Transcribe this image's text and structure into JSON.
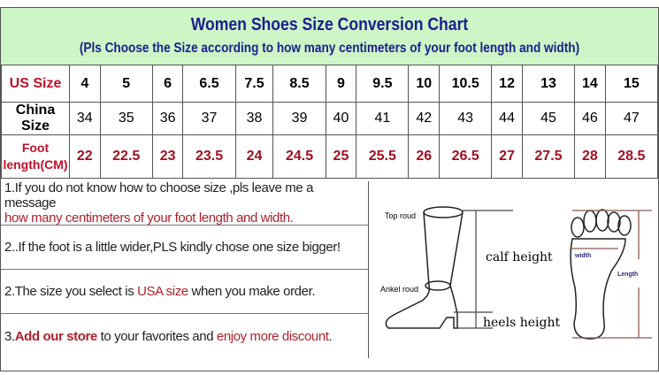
{
  "header": {
    "title": "Women Shoes Size Conversion Chart",
    "subtitle": "(Pls Choose the Size according to how many centimeters of your foot length and width)"
  },
  "table": {
    "us_label": "US Size",
    "us": [
      "4",
      "5",
      "6",
      "6.5",
      "7.5",
      "8.5",
      "9",
      "9.5",
      "10",
      "10.5",
      "12",
      "13",
      "14",
      "15"
    ],
    "china_label": "China Size",
    "china": [
      "34",
      "35",
      "36",
      "37",
      "38",
      "39",
      "40",
      "41",
      "42",
      "43",
      "44",
      "45",
      "46",
      "47"
    ],
    "foot_label_1": "Foot",
    "foot_label_2": "length(CM)",
    "foot": [
      "22",
      "22.5",
      "23",
      "23.5",
      "24",
      "24.5",
      "25",
      "25.5",
      "26",
      "26.5",
      "27",
      "27.5",
      "28",
      "28.5"
    ]
  },
  "notes": {
    "n1a": "1.If you do not know how to choose size ,pls leave me a message",
    "n1b": "how many centimeters of your foot length and width.",
    "n2": "2..If the foot is a little wider,PLS kindly chose one size bigger!",
    "n3a": "2.The size you select is ",
    "n3b": "USA size",
    "n3c": " when you make order.",
    "n4a": "3.",
    "n4b": "Add our store",
    "n4c": " to your favorites and ",
    "n4d": "enjoy more discount",
    "n4e": "."
  },
  "diagram": {
    "top_round": "Top roud",
    "ankle_round": "Ankel roud",
    "calf_height": "calf height",
    "heels_height": "heels height",
    "width": "width",
    "length": "Length"
  },
  "colors": {
    "header_bg": "#cdf5c6",
    "title": "#1b1e8c",
    "accent_red": "#b0202c"
  }
}
